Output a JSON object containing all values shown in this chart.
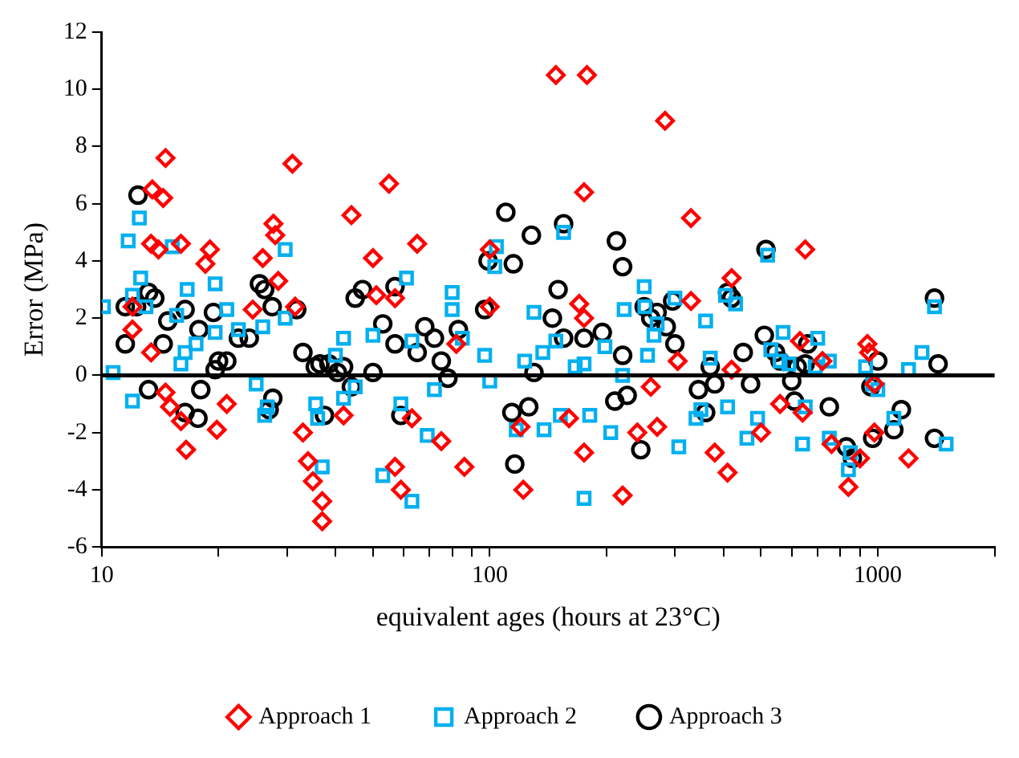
{
  "chart_data": {
    "type": "scatter",
    "xlabel": "equivalent ages (hours at 23°C)",
    "ylabel": "Error (MPa)",
    "log": "x",
    "grid": false,
    "legend": "bottom",
    "xlim": [
      10,
      2000
    ],
    "xticks": [
      10,
      {
        "value": 20,
        "label": null
      },
      {
        "value": 30,
        "label": null
      },
      {
        "value": 40,
        "label": null
      },
      {
        "value": 50,
        "label": null
      },
      {
        "value": 60,
        "label": null
      },
      {
        "value": 70,
        "label": null
      },
      {
        "value": 80,
        "label": null
      },
      {
        "value": 90,
        "label": null
      },
      100,
      {
        "value": 200,
        "label": null
      },
      {
        "value": 300,
        "label": null
      },
      {
        "value": 400,
        "label": null
      },
      {
        "value": 500,
        "label": null
      },
      {
        "value": 600,
        "label": null
      },
      {
        "value": 700,
        "label": null
      },
      {
        "value": 800,
        "label": null
      },
      {
        "value": 900,
        "label": null
      },
      1000,
      {
        "value": 2000,
        "label": null
      }
    ],
    "ylim": [
      -6,
      12
    ],
    "yticks": [
      -6,
      -4,
      -2,
      0,
      2,
      4,
      6,
      8,
      10,
      12
    ],
    "ref_lines": [
      {
        "axis": "y",
        "value": 0,
        "color": "#000000"
      }
    ],
    "series": [
      {
        "name": "Approach 1",
        "color": "#ff0000",
        "marker": "diamond",
        "x": [
          12,
          13.5,
          14.4,
          14.6,
          13.4,
          14,
          16,
          19,
          18.5,
          12,
          13.4,
          14.6,
          15,
          16,
          16.5,
          21,
          19.8,
          24.5,
          26,
          28,
          28.5,
          31,
          27.7,
          31.5,
          33,
          34,
          35,
          37,
          37,
          42,
          44,
          50,
          51,
          55,
          57,
          57,
          59,
          65,
          63,
          75,
          82,
          86,
          100,
          100,
          120,
          122,
          148,
          178,
          175,
          160,
          175,
          170,
          175,
          220,
          240,
          270,
          283,
          260,
          330,
          305,
          330,
          380,
          420,
          420,
          410,
          500,
          630,
          650,
          640,
          560,
          720,
          760,
          900,
          840,
          980,
          940,
          950,
          1200,
          980
        ],
        "values": [
          2.4,
          6.5,
          6.2,
          7.6,
          4.6,
          4.4,
          4.6,
          4.4,
          3.9,
          1.6,
          0.8,
          -0.6,
          -1.1,
          -1.6,
          -2.6,
          -1,
          -1.9,
          2.3,
          4.1,
          4.9,
          3.3,
          7.4,
          5.3,
          2.4,
          -2,
          -3,
          -3.7,
          -4.4,
          -5.1,
          -1.4,
          5.6,
          4.1,
          2.8,
          6.7,
          2.7,
          -3.2,
          -4,
          4.6,
          -1.5,
          -2.3,
          1.1,
          -3.2,
          2.4,
          4.4,
          -1.8,
          -4,
          10.5,
          10.5,
          6.4,
          -1.5,
          -2.7,
          2.5,
          2,
          -4.2,
          -2,
          -1.8,
          8.9,
          -0.4,
          5.5,
          0.5,
          2.6,
          -2.7,
          0.2,
          3.4,
          -3.4,
          -2,
          1.2,
          4.4,
          -1.3,
          -1,
          0.5,
          -2.4,
          -2.9,
          -3.9,
          -2,
          1.1,
          0.8,
          -2.9,
          -0.3
        ]
      },
      {
        "name": "Approach 2",
        "color": "#00b0f0",
        "marker": "square",
        "x": [
          10.1,
          10.7,
          11.7,
          12.5,
          12,
          12.6,
          13,
          12,
          15.2,
          15.6,
          16.4,
          16,
          16.6,
          17.5,
          19.6,
          21,
          19.6,
          22.5,
          26,
          25,
          26.3,
          26.7,
          29.7,
          29.7,
          35.6,
          36,
          37,
          40,
          42,
          45,
          42,
          50,
          53,
          59,
          61,
          63,
          63,
          69,
          72,
          80,
          80,
          85,
          97,
          104,
          103,
          100,
          117,
          123,
          137,
          130,
          138,
          148,
          152,
          155,
          166,
          175,
          175,
          181,
          198,
          205,
          220,
          222,
          251,
          250,
          255,
          265,
          270,
          300,
          307,
          340,
          350,
          370,
          360,
          405,
          410,
          430,
          460,
          490,
          520,
          530,
          560,
          570,
          590,
          640,
          650,
          700,
          750,
          690,
          750,
          840,
          850,
          930,
          970,
          1000,
          1100,
          1200,
          1300,
          1400,
          1500
        ],
        "values": [
          2.4,
          0.1,
          4.7,
          5.5,
          2.8,
          3.4,
          2.4,
          -0.9,
          4.5,
          2.1,
          0.8,
          0.4,
          3,
          1.1,
          3.2,
          2.3,
          1.5,
          1.6,
          1.7,
          -0.3,
          -1.4,
          -1.1,
          4.4,
          2,
          -1,
          -1.5,
          -3.2,
          0.7,
          1.3,
          -0.4,
          -0.8,
          1.4,
          -3.5,
          -1,
          3.4,
          1.2,
          -4.4,
          -2.1,
          -0.5,
          2.9,
          2.3,
          1.3,
          0.7,
          4.5,
          3.8,
          -0.2,
          -1.9,
          0.5,
          0.8,
          2.2,
          -1.9,
          1.2,
          -1.4,
          5,
          0.3,
          0.4,
          -4.3,
          -1.4,
          1,
          -2,
          0,
          2.3,
          2.4,
          3.1,
          0.7,
          1.4,
          1.8,
          2.7,
          -2.5,
          -1.5,
          -1.2,
          0.6,
          1.9,
          2.8,
          -1.1,
          2.5,
          -2.2,
          -1.5,
          4.2,
          0.9,
          0.5,
          1.5,
          0.4,
          -2.4,
          -1.1,
          1.3,
          0.5,
          0.3,
          -2.2,
          -3.3,
          -2.7,
          0.3,
          -0.3,
          -0.5,
          -1.5,
          0.2,
          0.8,
          2.4,
          -2.4
        ]
      },
      {
        "name": "Approach 3",
        "color": "#000000",
        "marker": "circle",
        "x": [
          12.4,
          11.5,
          12.3,
          13.2,
          13.7,
          11.5,
          14.4,
          13.2,
          14.8,
          16.4,
          16.4,
          17.7,
          17.8,
          18,
          19.4,
          19.6,
          20,
          21,
          22.5,
          24,
          25.5,
          26.3,
          27.5,
          27,
          27.6,
          31.8,
          33,
          35.5,
          36.5,
          38.5,
          37.5,
          40.5,
          42,
          44,
          45,
          47,
          50,
          53,
          57,
          57,
          59,
          65,
          68,
          72,
          75,
          78,
          83,
          97,
          99,
          110,
          115,
          114,
          116,
          128,
          126,
          130,
          145,
          155,
          150,
          155,
          175,
          195,
          210,
          212,
          220,
          220,
          226,
          245,
          250,
          260,
          270,
          285,
          300,
          296,
          345,
          360,
          370,
          380,
          410,
          420,
          450,
          470,
          510,
          515,
          545,
          560,
          600,
          610,
          620,
          650,
          660,
          750,
          830,
          860,
          960,
          970,
          1000,
          1100,
          1150,
          1400,
          1400,
          1430
        ],
        "values": [
          6.3,
          2.4,
          2.4,
          2.9,
          2.7,
          1.1,
          1.1,
          -0.5,
          1.9,
          2.3,
          -1.3,
          -1.5,
          1.6,
          -0.5,
          2.2,
          0.2,
          0.5,
          0.5,
          1.3,
          1.3,
          3.2,
          3,
          2.4,
          -1.2,
          -0.8,
          2.3,
          0.8,
          0.3,
          0.4,
          0.4,
          -1.4,
          0.1,
          0.3,
          -0.4,
          2.7,
          3,
          0.1,
          1.8,
          3.1,
          1.1,
          -1.4,
          0.8,
          1.7,
          1.3,
          0.5,
          -0.1,
          1.6,
          2.3,
          4,
          5.7,
          3.9,
          -1.3,
          -3.1,
          4.9,
          -1.1,
          0.1,
          2,
          5.3,
          3,
          1.3,
          1.3,
          1.5,
          -0.9,
          4.7,
          3.8,
          0.7,
          -0.7,
          -2.6,
          2.4,
          2,
          2.2,
          1.7,
          1.1,
          2.6,
          -0.5,
          -1.3,
          0.3,
          -0.3,
          2.9,
          2.7,
          0.8,
          -0.3,
          1.4,
          4.4,
          0.8,
          0.5,
          -0.2,
          -0.9,
          0.3,
          0.4,
          1.1,
          -1.1,
          -2.5,
          -2.9,
          -0.4,
          -2.2,
          0.5,
          -1.9,
          -1.2,
          2.7,
          -2.2,
          0.4
        ]
      }
    ]
  }
}
